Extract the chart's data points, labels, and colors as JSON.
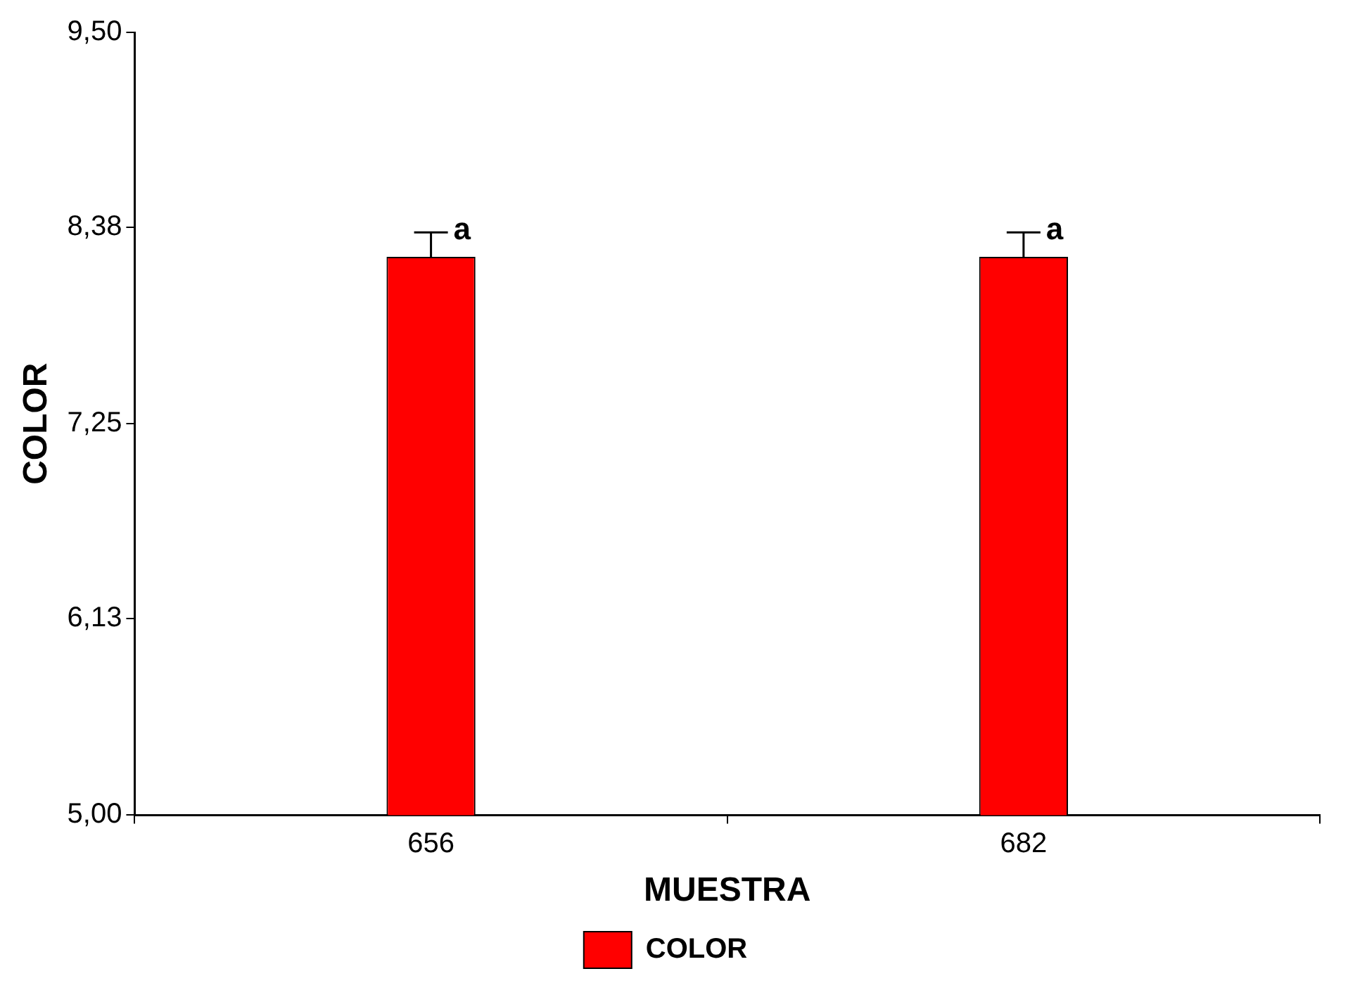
{
  "chart_data": {
    "type": "bar",
    "xlabel": "MUESTRA",
    "ylabel": "COLOR",
    "categories": [
      "656",
      "682"
    ],
    "series": [
      {
        "name": "COLOR",
        "color": "#ff0000",
        "values": [
          8.21,
          8.21
        ],
        "errors": [
          [
            8.21,
            8.35
          ],
          [
            8.21,
            8.35
          ]
        ]
      }
    ],
    "ylim": [
      5,
      9.5
    ],
    "yticks": [
      {
        "value": 5,
        "label": "5,00"
      },
      {
        "value": 6.13,
        "label": "6,13"
      },
      {
        "value": 7.25,
        "label": "7,25"
      },
      {
        "value": 8.38,
        "label": "8,38"
      },
      {
        "value": 9.5,
        "label": "9,50"
      }
    ],
    "annotations": [
      {
        "text": "a",
        "x": "656",
        "y": 8.35
      },
      {
        "text": "a",
        "x": "682",
        "y": 8.35
      }
    ],
    "grid": false,
    "legend": "bottom"
  }
}
